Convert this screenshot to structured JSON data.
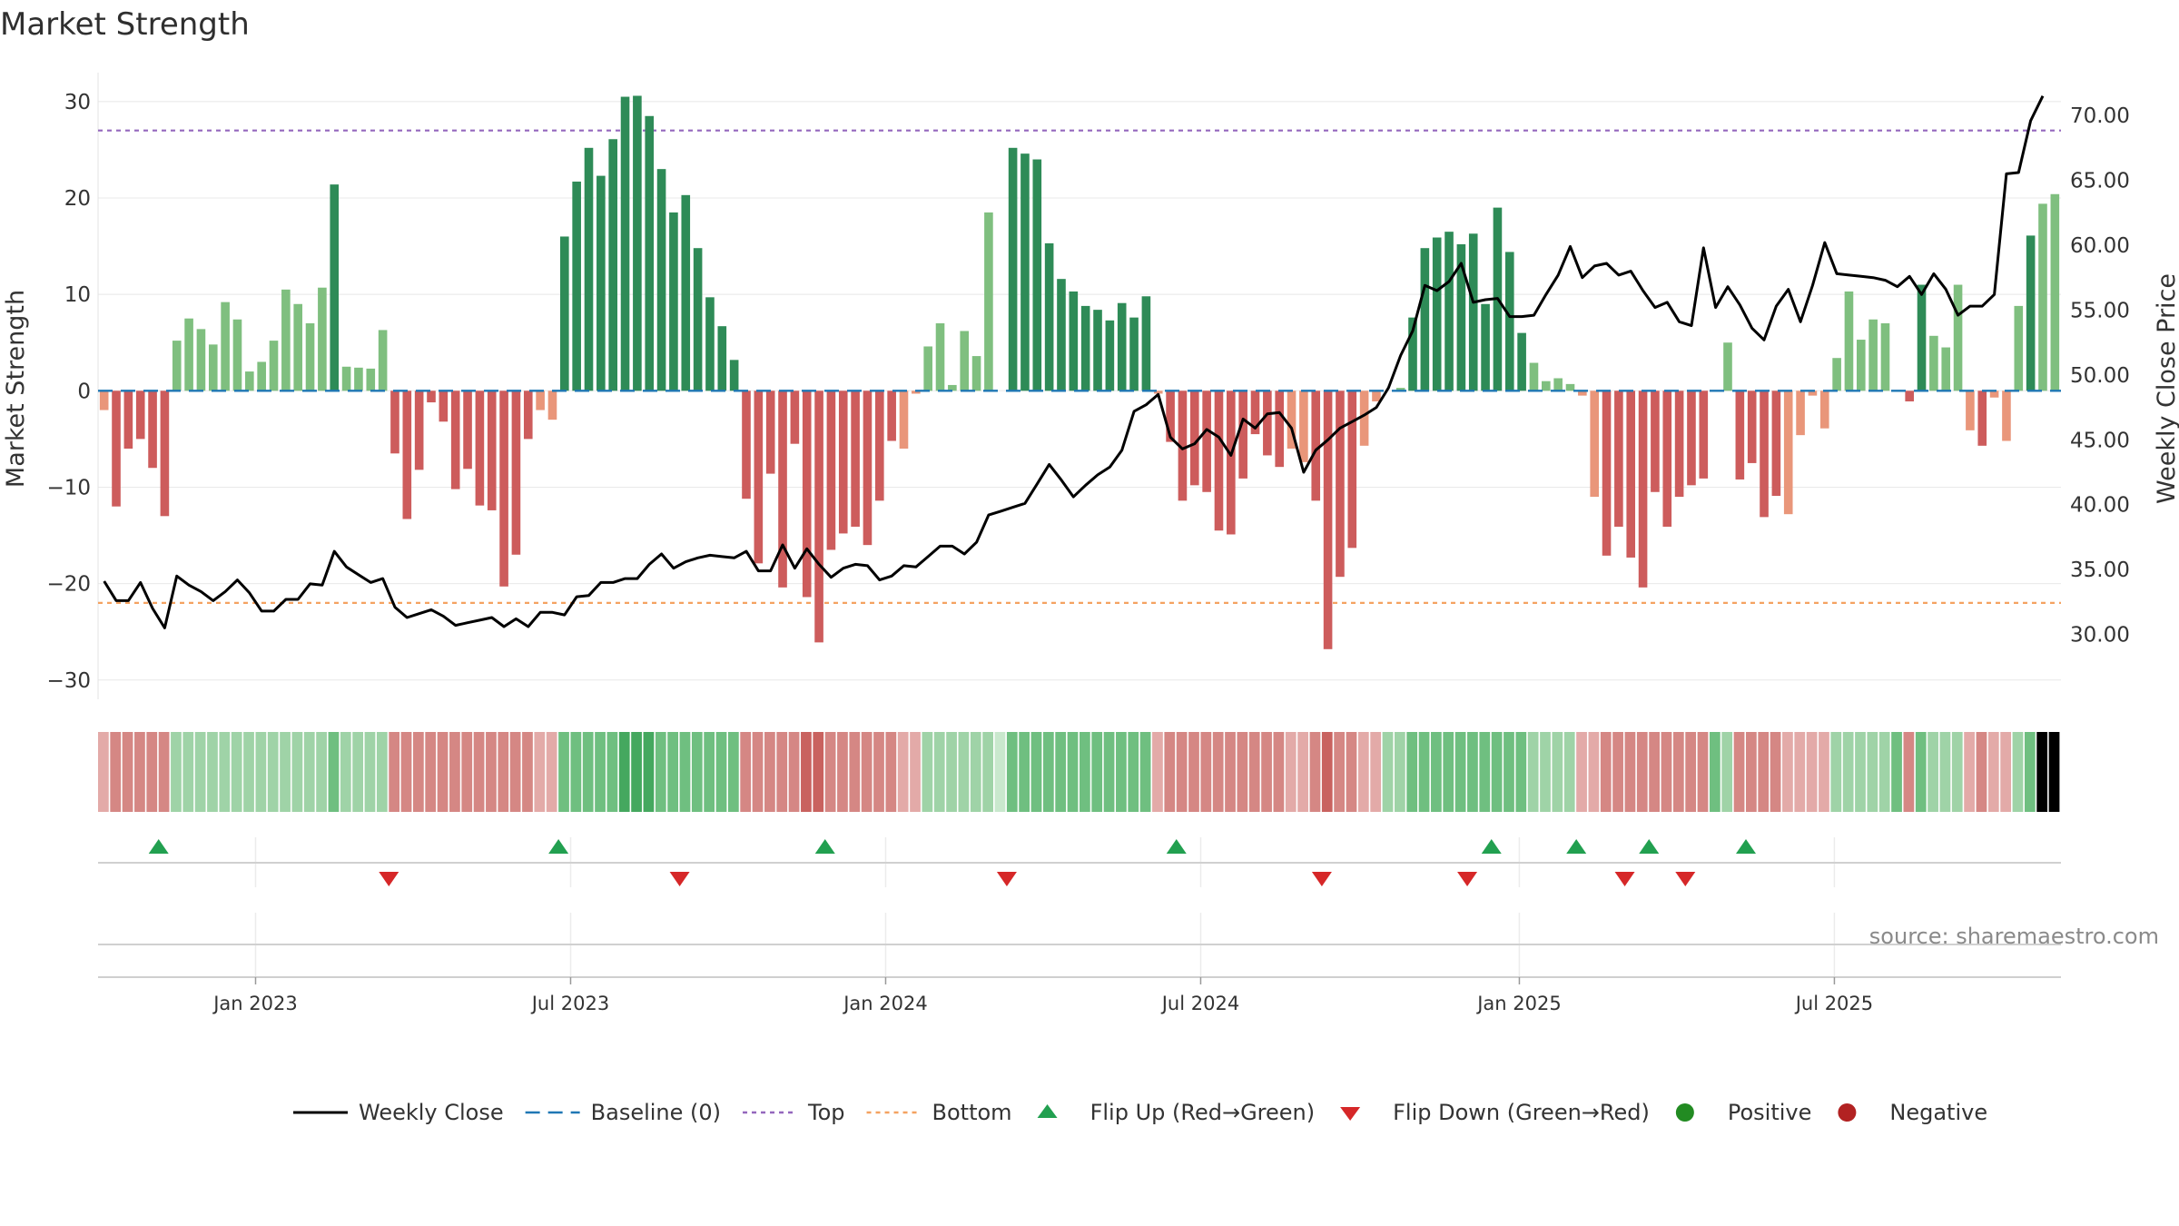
{
  "chart_data": {
    "type": "bar",
    "title": "Market Strength",
    "ylabel": "Market Strength",
    "y2label": "Weekly Close Price",
    "ylim": [
      -32,
      33
    ],
    "y2lim": [
      25.0,
      73.3
    ],
    "yticks": [
      30,
      20,
      10,
      0,
      -10,
      -20,
      -30
    ],
    "y2ticks": [
      70,
      65,
      60,
      55,
      50,
      45,
      40,
      35,
      30
    ],
    "y2tick_labels": [
      "70.00",
      "65.00",
      "60.00",
      "55.00",
      "50.00",
      "45.00",
      "40.00",
      "35.00",
      "30.00"
    ],
    "top_level": 27,
    "bottom_level": -22,
    "baseline_level": 0,
    "x_start_date": "2022-10-03",
    "x_week_step": 1,
    "date_ticks": [
      {
        "label": "Jan 2023",
        "week": 13
      },
      {
        "label": "Jul 2023",
        "week": 39
      },
      {
        "label": "Jan 2024",
        "week": 65
      },
      {
        "label": "Jul 2024",
        "week": 91
      },
      {
        "label": "Jan 2025",
        "week": 117.3
      },
      {
        "label": "Jul 2025",
        "week": 143.3
      }
    ],
    "strength": [
      -2,
      -12,
      -6,
      -5,
      -8,
      -13,
      5.2,
      7.5,
      6.4,
      4.8,
      9.2,
      7.4,
      2,
      3,
      5.2,
      10.5,
      9,
      7,
      10.7,
      21.4,
      2.5,
      2.4,
      2.3,
      6.3,
      -6.5,
      -13.3,
      -8.2,
      -1.2,
      -3.2,
      -10.2,
      -8.1,
      -11.9,
      -12.4,
      -20.3,
      -17,
      -5,
      -2,
      -3,
      16,
      21.7,
      25.2,
      22.3,
      26.1,
      30.5,
      30.6,
      28.5,
      23,
      18.5,
      20.3,
      14.8,
      9.7,
      6.7,
      3.2,
      -11.2,
      -17.9,
      -8.6,
      -20.4,
      -5.5,
      -21.4,
      -26.1,
      -16.5,
      -14.8,
      -14.1,
      -16,
      -11.4,
      -5.2,
      -6,
      -0.3,
      4.6,
      7,
      0.6,
      6.2,
      3.6,
      18.5,
      0,
      25.2,
      24.6,
      24,
      15.3,
      11.6,
      10.3,
      8.8,
      8.4,
      7.3,
      9.1,
      7.6,
      9.8,
      -0.3,
      -5.3,
      -11.4,
      -9.8,
      -10.5,
      -14.5,
      -14.9,
      -9.1,
      -4.5,
      -6.7,
      -7.9,
      -6,
      -7.4,
      -11.4,
      -26.8,
      -19.3,
      -16.3,
      -5.7,
      -1.1,
      0,
      0.3,
      7.6,
      14.8,
      15.9,
      16.5,
      15.2,
      16.3,
      9,
      19,
      14.4,
      6,
      2.9,
      1,
      1.3,
      0.7,
      -0.5,
      -11,
      -17.1,
      -14.1,
      -17.3,
      -20.4,
      -10.5,
      -14.1,
      -11,
      -9.8,
      -9.1,
      0,
      5,
      -9.2,
      -7.5,
      -13.1,
      -10.9,
      -12.8,
      -4.6,
      -0.5,
      -3.9,
      3.4,
      10.3,
      5.3,
      7.4,
      7,
      0,
      -1.1,
      11,
      5.7,
      4.5,
      11,
      -4.1,
      -5.7,
      -0.7,
      -5.2,
      8.8,
      16.1,
      19.4,
      20.4
    ],
    "shade_strength": [
      1,
      2,
      2,
      2,
      2,
      2,
      1,
      1,
      1,
      1,
      1,
      1,
      1,
      1,
      1,
      1,
      1,
      1,
      1,
      2,
      1,
      1,
      1,
      1,
      2,
      2,
      2,
      2,
      2,
      2,
      2,
      2,
      2,
      2,
      2,
      2,
      1,
      1,
      2,
      2,
      2,
      2,
      2,
      3,
      3,
      3,
      2,
      2,
      2,
      2,
      2,
      2,
      2,
      2,
      2,
      2,
      2,
      2,
      3,
      3,
      2,
      2,
      2,
      2,
      2,
      2,
      1,
      1,
      1,
      1,
      1,
      1,
      1,
      1,
      0,
      2,
      2,
      2,
      2,
      2,
      2,
      2,
      2,
      2,
      2,
      2,
      2,
      1,
      2,
      2,
      2,
      2,
      2,
      2,
      2,
      2,
      2,
      2,
      1,
      1,
      2,
      3,
      2,
      2,
      1,
      1,
      1,
      1,
      2,
      2,
      2,
      2,
      2,
      2,
      2,
      2,
      2,
      2,
      1,
      1,
      1,
      1,
      1,
      1,
      2,
      2,
      2,
      2,
      2,
      2,
      2,
      2,
      2,
      2,
      1,
      2,
      2,
      2,
      2,
      1,
      1,
      1,
      1,
      1,
      1,
      1,
      1,
      1,
      2,
      2,
      2,
      1,
      1,
      1,
      1,
      2,
      1,
      1,
      1,
      2
    ],
    "price": [
      34.1,
      32.6,
      32.6,
      34,
      32,
      30.5,
      34.5,
      33.8,
      33.3,
      32.6,
      33.3,
      34.2,
      33.2,
      31.8,
      31.8,
      32.7,
      32.7,
      33.9,
      33.8,
      36.4,
      35.2,
      34.6,
      34,
      34.3,
      32.1,
      31.3,
      31.6,
      31.9,
      31.4,
      30.7,
      30.9,
      31.1,
      31.3,
      30.6,
      31.2,
      30.6,
      31.7,
      31.7,
      31.5,
      32.9,
      33,
      34,
      34,
      34.3,
      34.3,
      35.4,
      36.2,
      35.1,
      35.6,
      35.9,
      36.1,
      36,
      35.9,
      36.4,
      34.9,
      34.9,
      36.9,
      35.1,
      36.6,
      35.4,
      34.4,
      35.1,
      35.4,
      35.3,
      34.2,
      34.5,
      35.3,
      35.2,
      36,
      36.8,
      36.8,
      36.2,
      37.1,
      39.2,
      39.5,
      39.8,
      40.1,
      41.6,
      43.1,
      41.9,
      40.6,
      41.5,
      42.3,
      42.9,
      44.2,
      47.2,
      47.7,
      48.5,
      45.2,
      44.3,
      44.7,
      45.8,
      45.2,
      43.8,
      46.6,
      45.9,
      47,
      47.1,
      45.9,
      42.5,
      44.2,
      45,
      45.9,
      46.4,
      46.9,
      47.5,
      49,
      51.5,
      53.4,
      56.9,
      56.5,
      57.2,
      58.6,
      55.6,
      55.8,
      55.9,
      54.5,
      54.5,
      54.6,
      56.2,
      57.7,
      59.9,
      57.5,
      58.4,
      58.6,
      57.7,
      58,
      56.5,
      55.2,
      55.6,
      54.1,
      53.8,
      59.8,
      55.2,
      56.8,
      55.4,
      53.6,
      52.7,
      55.3,
      56.6,
      54.1,
      56.9,
      60.2,
      57.8,
      57.7,
      57.6,
      57.5,
      57.3,
      56.8,
      57.6,
      56.2,
      57.8,
      56.6,
      54.6,
      55.3,
      55.3,
      56.2,
      65.5,
      65.6,
      69.6,
      71.5
    ],
    "flip_up_weeks": [
      5,
      38,
      60,
      89,
      115,
      122,
      128,
      136
    ],
    "flip_down_weeks": [
      24,
      48,
      75,
      101,
      113,
      126,
      131
    ],
    "legend": [
      {
        "label": "Weekly Close",
        "kind": "line"
      },
      {
        "label": "Baseline (0)",
        "kind": "dash"
      },
      {
        "label": "Top",
        "kind": "dot-purple"
      },
      {
        "label": "Bottom",
        "kind": "dot-orange"
      },
      {
        "label": "Flip Up (Red→Green)",
        "kind": "tri-up"
      },
      {
        "label": "Flip Down (Green→Red)",
        "kind": "tri-down"
      },
      {
        "label": "Positive",
        "kind": "circle-green"
      },
      {
        "label": "Negative",
        "kind": "circle-red"
      }
    ],
    "source": "source: sharemaestro.com"
  },
  "colors": {
    "pos_strong": "#2e8b57",
    "pos_light": "#7fbf7f",
    "neg_strong": "#cd5c5c",
    "neg_light": "#e9967a",
    "line": "#000000",
    "baseline": "#1f77b4",
    "top": "#9467bd",
    "bottom": "#f4a261",
    "flip_up": "#22a050",
    "flip_down": "#d62728",
    "positive_dot": "#228b22",
    "negative_dot": "#b22222",
    "grid": "#e8e8e8"
  }
}
